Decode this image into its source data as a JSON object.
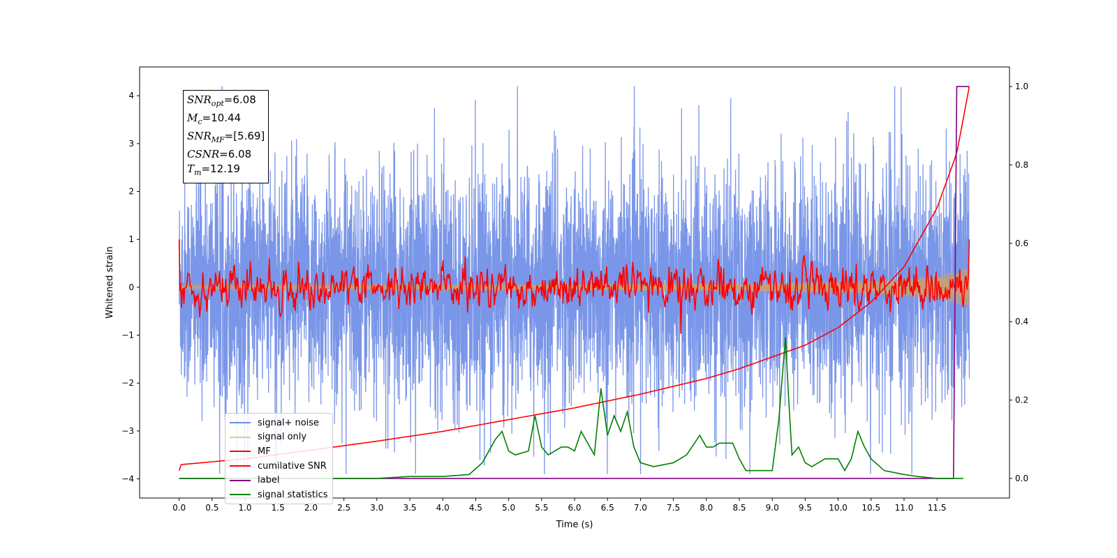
{
  "chart_data": {
    "type": "line",
    "xlabel": "Time (s)",
    "ylabel": "Whitened strain",
    "xlim": [
      -0.6,
      12.6
    ],
    "ylim": [
      -4.4,
      4.6
    ],
    "ylim_right": [
      -0.05,
      1.05
    ],
    "x_ticks": [
      0.0,
      0.5,
      1.0,
      1.5,
      2.0,
      2.5,
      3.0,
      3.5,
      4.0,
      4.5,
      5.0,
      5.5,
      6.0,
      6.5,
      7.0,
      7.5,
      8.0,
      8.5,
      9.0,
      9.5,
      10.0,
      10.5,
      11.0,
      11.5
    ],
    "x_tick_labels": [
      "0.0",
      "0.5",
      "1.0",
      "1.5",
      "2.0",
      "2.5",
      "3.0",
      "3.5",
      "4.0",
      "4.5",
      "5.0",
      "5.5",
      "6.0",
      "6.5",
      "7.0",
      "7.5",
      "8.0",
      "8.5",
      "9.0",
      "9.5",
      "10.0",
      "10.5",
      "11.0",
      "11.5"
    ],
    "y_ticks": [
      -4,
      -3,
      -2,
      -1,
      0,
      1,
      2,
      3,
      4
    ],
    "y_tick_labels": [
      "−4",
      "−3",
      "−2",
      "−1",
      "0",
      "1",
      "2",
      "3",
      "4"
    ],
    "y_right_ticks": [
      0.0,
      0.2,
      0.4,
      0.6,
      0.8,
      1.0
    ],
    "y_right_tick_labels": [
      "0.0",
      "0.2",
      "0.4",
      "0.6",
      "0.8",
      "1.0"
    ],
    "grid": false,
    "legend_position": "lower-left",
    "annotation": {
      "snr_opt": "=6.08",
      "mc": "=10.44",
      "snr_mf": "=[5.69]",
      "csnr": "=6.08",
      "tm": "=12.19"
    },
    "series": [
      {
        "name": "signal+ noise",
        "color": "#6b8be6",
        "axis": "left",
        "description_range": [
          -3.9,
          4.2
        ],
        "x_range": [
          0.0,
          11.99
        ]
      },
      {
        "name": "signal only",
        "color": "#f5b041",
        "axis": "left",
        "envelope": {
          "x": [
            0.0,
            6.0,
            9.0,
            10.5,
            11.5,
            11.99
          ],
          "amp": [
            0.05,
            0.06,
            0.09,
            0.14,
            0.24,
            0.42
          ]
        }
      },
      {
        "name": "MF",
        "color": "#ff0000",
        "axis": "left",
        "start_value": 1.0,
        "end_value": 1.0,
        "noise_amp": 0.2
      },
      {
        "name": "cumilative SNR",
        "color": "#ff0000",
        "axis": "right",
        "x": [
          0.0,
          0.01,
          1.0,
          2.0,
          3.0,
          4.0,
          5.0,
          6.0,
          7.0,
          8.0,
          8.5,
          9.0,
          9.5,
          10.0,
          10.5,
          11.0,
          11.5,
          11.8,
          11.99
        ],
        "y": [
          0.02,
          0.035,
          0.05,
          0.072,
          0.095,
          0.12,
          0.15,
          0.18,
          0.215,
          0.255,
          0.28,
          0.31,
          0.34,
          0.385,
          0.45,
          0.54,
          0.69,
          0.83,
          1.0
        ]
      },
      {
        "name": "label",
        "color": "#800080",
        "axis": "right",
        "x": [
          0.0,
          11.75,
          11.8,
          11.99
        ],
        "y": [
          0.0,
          0.0,
          1.0,
          1.0
        ]
      },
      {
        "name": "signal statistics",
        "color": "#008000",
        "axis": "right",
        "x": [
          0.0,
          0.5,
          1.0,
          2.0,
          3.0,
          3.5,
          4.0,
          4.4,
          4.6,
          4.8,
          4.9,
          5.0,
          5.1,
          5.3,
          5.4,
          5.5,
          5.6,
          5.8,
          5.9,
          6.0,
          6.1,
          6.3,
          6.4,
          6.5,
          6.6,
          6.7,
          6.8,
          6.9,
          7.0,
          7.2,
          7.5,
          7.7,
          7.9,
          8.0,
          8.1,
          8.2,
          8.4,
          8.5,
          8.6,
          8.8,
          9.0,
          9.1,
          9.2,
          9.25,
          9.3,
          9.4,
          9.5,
          9.6,
          9.8,
          10.0,
          10.1,
          10.2,
          10.3,
          10.4,
          10.5,
          10.7,
          11.0,
          11.2,
          11.5,
          11.9
        ],
        "y": [
          0.0,
          0.0,
          0.0,
          0.0,
          0.0,
          0.005,
          0.005,
          0.01,
          0.04,
          0.1,
          0.12,
          0.07,
          0.06,
          0.07,
          0.16,
          0.08,
          0.06,
          0.08,
          0.08,
          0.07,
          0.12,
          0.06,
          0.23,
          0.11,
          0.16,
          0.12,
          0.17,
          0.08,
          0.04,
          0.03,
          0.04,
          0.06,
          0.11,
          0.08,
          0.08,
          0.09,
          0.09,
          0.05,
          0.02,
          0.02,
          0.02,
          0.15,
          0.36,
          0.2,
          0.06,
          0.08,
          0.04,
          0.03,
          0.05,
          0.05,
          0.02,
          0.05,
          0.12,
          0.08,
          0.05,
          0.02,
          0.01,
          0.005,
          0.0,
          0.0
        ]
      }
    ]
  }
}
